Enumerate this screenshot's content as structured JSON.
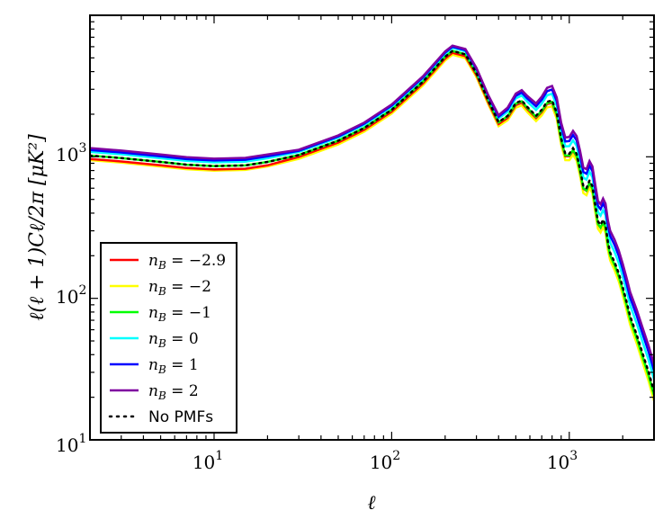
{
  "chart_data": {
    "type": "line",
    "title": "",
    "xlabel": "ℓ",
    "ylabel": "ℓ(ℓ + 1)Cℓ/2π  [μK²]",
    "xscale": "log",
    "yscale": "log",
    "xlim": [
      2,
      3000
    ],
    "ylim": [
      10,
      10000
    ],
    "x_tick_labels": [
      {
        "base": "10",
        "exp": "1"
      },
      {
        "base": "10",
        "exp": "2"
      },
      {
        "base": "10",
        "exp": "3"
      }
    ],
    "y_tick_labels": [
      {
        "base": "10",
        "exp": "1"
      },
      {
        "base": "10",
        "exp": "2"
      },
      {
        "base": "10",
        "exp": "3"
      }
    ],
    "legend_position": "lower-left",
    "series": [
      {
        "name": "n_B = −2.9",
        "label_main": "n",
        "label_sub": "B",
        "label_rest": " = −2.9",
        "color": "#ff0000",
        "dash": "solid",
        "amp": 0.97,
        "tail": 0.95
      },
      {
        "name": "n_B = −2",
        "label_main": "n",
        "label_sub": "B",
        "label_rest": " = −2",
        "color": "#ffff00",
        "dash": "solid",
        "amp": 0.94,
        "tail": 0.86
      },
      {
        "name": "n_B = −1",
        "label_main": "n",
        "label_sub": "B",
        "label_rest": " = −1",
        "color": "#00ff00",
        "dash": "solid",
        "amp": 1.0,
        "tail": 0.94
      },
      {
        "name": "n_B = 0",
        "label_main": "n",
        "label_sub": "B",
        "label_rest": " = 0",
        "color": "#00ffff",
        "dash": "solid",
        "amp": 1.05,
        "tail": 1.22
      },
      {
        "name": "n_B = 1",
        "label_main": "n",
        "label_sub": "B",
        "label_rest": " = 1",
        "color": "#0000ff",
        "dash": "solid",
        "amp": 1.07,
        "tail": 1.4
      },
      {
        "name": "n_B = 2",
        "label_main": "n",
        "label_sub": "B",
        "label_rest": " = 2",
        "color": "#7f00a0",
        "dash": "solid",
        "amp": 1.09,
        "tail": 1.55
      },
      {
        "name": "No PMFs",
        "label_main": "",
        "label_sub": "",
        "label_rest": "No PMFs",
        "color": "#000000",
        "dash": "dotted",
        "amp": 1.0,
        "tail": 1.0
      }
    ],
    "base_curve": {
      "l": [
        2,
        3,
        5,
        7,
        10,
        15,
        20,
        30,
        50,
        70,
        100,
        150,
        200,
        220,
        260,
        300,
        350,
        400,
        450,
        500,
        540,
        580,
        650,
        700,
        750,
        800,
        850,
        900,
        950,
        1000,
        1050,
        1100,
        1150,
        1200,
        1250,
        1300,
        1350,
        1400,
        1450,
        1500,
        1550,
        1600,
        1650,
        1700,
        1800,
        1900,
        2000,
        2100,
        2200,
        2400,
        2600,
        2800,
        3000
      ],
      "D": [
        1020,
        980,
        920,
        880,
        860,
        870,
        920,
        1030,
        1300,
        1600,
        2150,
        3400,
        5100,
        5600,
        5300,
        3900,
        2500,
        1760,
        1950,
        2400,
        2500,
        2250,
        1950,
        2150,
        2450,
        2500,
        2050,
        1350,
        1050,
        1050,
        1150,
        1050,
        820,
        620,
        600,
        680,
        620,
        460,
        350,
        330,
        360,
        330,
        250,
        210,
        180,
        150,
        120,
        95,
        75,
        55,
        40,
        30,
        22
      ]
    }
  }
}
